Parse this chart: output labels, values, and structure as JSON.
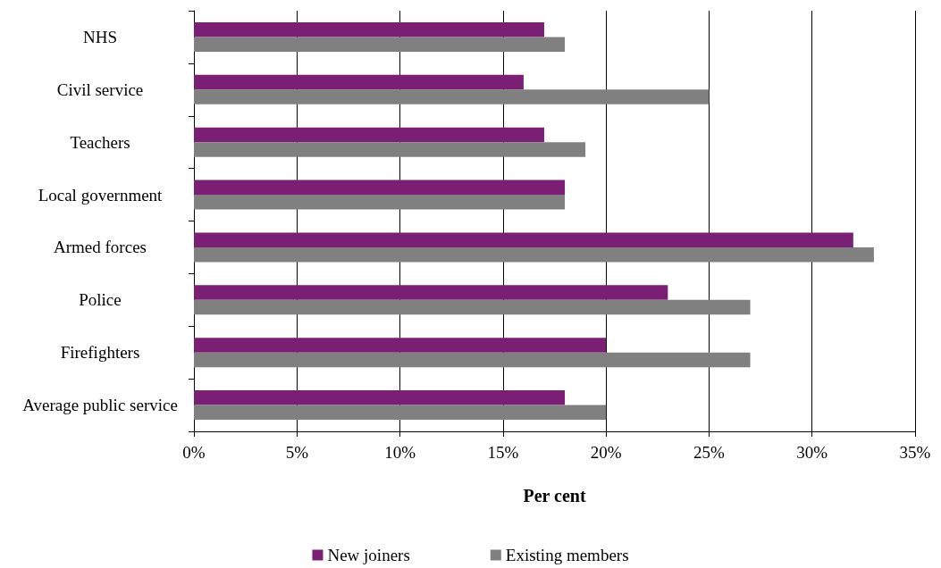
{
  "chart_data": {
    "type": "bar",
    "orientation": "horizontal",
    "xlabel": "Per cent",
    "categories": [
      "NHS",
      "Civil service",
      "Teachers",
      "Local government",
      "Armed forces",
      "Police",
      "Firefighters",
      "Average public service"
    ],
    "series": [
      {
        "name": "New joiners",
        "color": "#7b1f74",
        "values": [
          17,
          16,
          17,
          18,
          32,
          23,
          20,
          18
        ]
      },
      {
        "name": "Existing members",
        "color": "#808080",
        "values": [
          18,
          25,
          19,
          18,
          33,
          27,
          27,
          20
        ]
      }
    ],
    "xlim": [
      0,
      35
    ],
    "xticks": [
      {
        "value": 0,
        "label": "0%"
      },
      {
        "value": 5,
        "label": "5%"
      },
      {
        "value": 10,
        "label": "10%"
      },
      {
        "value": 15,
        "label": "15%"
      },
      {
        "value": 20,
        "label": "20%"
      },
      {
        "value": 25,
        "label": "25%"
      },
      {
        "value": 30,
        "label": "30%"
      },
      {
        "value": 35,
        "label": "35%"
      }
    ],
    "grid": "x",
    "legend": "bottom"
  }
}
